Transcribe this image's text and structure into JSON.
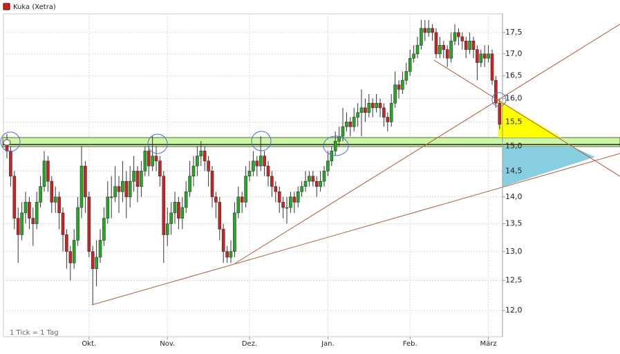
{
  "chart_data": {
    "type": "candlestick",
    "series_name": "Kuka (Xetra)",
    "annotation": "1 Tick = 1 Tag",
    "up_color": "#22aa22",
    "down_color": "#cc2222",
    "log_scale": true,
    "grid": true,
    "ylim": [
      11.58,
      17.95
    ],
    "yticks": [
      {
        "value": 12.0,
        "label": "12,0"
      },
      {
        "value": 12.5,
        "label": "12,5"
      },
      {
        "value": 13.0,
        "label": "13,0"
      },
      {
        "value": 13.5,
        "label": "13,5"
      },
      {
        "value": 14.0,
        "label": "14,0"
      },
      {
        "value": 14.5,
        "label": "14,5"
      },
      {
        "value": 15.0,
        "label": "15,0"
      },
      {
        "value": 15.5,
        "label": "15,5"
      },
      {
        "value": 16.0,
        "label": "16,0"
      },
      {
        "value": 16.5,
        "label": "16,5"
      },
      {
        "value": 17.0,
        "label": "17,0"
      },
      {
        "value": 17.5,
        "label": "17,5"
      }
    ],
    "xticks": [
      {
        "value": 22,
        "label": "Okt."
      },
      {
        "value": 43,
        "label": "Nov."
      },
      {
        "value": 65,
        "label": "Dez."
      },
      {
        "value": 86,
        "label": "Jan."
      },
      {
        "value": 108,
        "label": "Feb."
      },
      {
        "value": 129,
        "label": "März"
      }
    ],
    "ohlc": [
      [
        15.1,
        15.25,
        14.75,
        14.9
      ],
      [
        14.9,
        15.0,
        14.2,
        14.4
      ],
      [
        14.4,
        14.5,
        13.4,
        13.6
      ],
      [
        13.6,
        13.8,
        12.8,
        13.3
      ],
      [
        13.3,
        13.9,
        13.2,
        13.7
      ],
      [
        13.7,
        14.1,
        13.5,
        13.9
      ],
      [
        13.9,
        14.0,
        13.4,
        13.6
      ],
      [
        13.6,
        13.8,
        13.1,
        13.5
      ],
      [
        13.5,
        14.1,
        13.4,
        13.9
      ],
      [
        13.9,
        14.4,
        13.8,
        14.2
      ],
      [
        14.2,
        14.9,
        14.1,
        14.7
      ],
      [
        14.7,
        14.8,
        14.1,
        14.3
      ],
      [
        14.3,
        14.4,
        13.7,
        13.9
      ],
      [
        13.9,
        14.2,
        13.7,
        14.0
      ],
      [
        14.0,
        14.1,
        13.4,
        13.7
      ],
      [
        13.7,
        13.8,
        13.0,
        13.3
      ],
      [
        13.3,
        13.4,
        12.7,
        13.0
      ],
      [
        13.0,
        13.1,
        12.5,
        12.8
      ],
      [
        12.8,
        13.4,
        12.7,
        13.2
      ],
      [
        13.2,
        14.0,
        13.1,
        13.8
      ],
      [
        13.8,
        15.0,
        13.6,
        14.6
      ],
      [
        14.6,
        14.7,
        13.7,
        14.0
      ],
      [
        14.0,
        14.1,
        12.9,
        13.0
      ],
      [
        13.0,
        13.1,
        12.1,
        12.7
      ],
      [
        12.7,
        13.2,
        12.4,
        12.9
      ],
      [
        12.9,
        13.4,
        12.8,
        13.2
      ],
      [
        13.2,
        13.8,
        13.1,
        13.6
      ],
      [
        13.6,
        14.3,
        13.5,
        14.0
      ],
      [
        14.0,
        14.4,
        13.6,
        14.0
      ],
      [
        14.0,
        14.6,
        13.9,
        14.2
      ],
      [
        14.2,
        14.4,
        13.7,
        14.1
      ],
      [
        14.1,
        14.7,
        13.9,
        14.3
      ],
      [
        14.3,
        14.5,
        13.6,
        14.0
      ],
      [
        14.0,
        14.6,
        13.8,
        14.3
      ],
      [
        14.3,
        14.8,
        14.1,
        14.5
      ],
      [
        14.5,
        14.6,
        13.9,
        14.2
      ],
      [
        14.2,
        14.7,
        14.0,
        14.5
      ],
      [
        14.5,
        15.0,
        14.4,
        14.9
      ],
      [
        14.9,
        15.0,
        14.4,
        14.6
      ],
      [
        14.6,
        15.2,
        14.5,
        14.8
      ],
      [
        14.8,
        15.0,
        14.5,
        14.7
      ],
      [
        14.7,
        14.8,
        14.2,
        14.4
      ],
      [
        14.4,
        14.5,
        12.8,
        13.3
      ],
      [
        13.3,
        13.8,
        13.1,
        13.5
      ],
      [
        13.5,
        13.9,
        13.3,
        13.7
      ],
      [
        13.7,
        14.1,
        13.5,
        13.9
      ],
      [
        13.9,
        14.0,
        13.4,
        13.6
      ],
      [
        13.6,
        14.0,
        13.4,
        13.8
      ],
      [
        13.8,
        14.3,
        13.7,
        14.1
      ],
      [
        14.1,
        14.7,
        14.0,
        14.4
      ],
      [
        14.4,
        14.8,
        14.2,
        14.6
      ],
      [
        14.6,
        15.0,
        14.4,
        14.8
      ],
      [
        14.8,
        15.1,
        14.6,
        14.9
      ],
      [
        14.9,
        15.0,
        14.5,
        14.7
      ],
      [
        14.7,
        14.8,
        14.2,
        14.5
      ],
      [
        14.5,
        14.6,
        13.8,
        14.0
      ],
      [
        14.0,
        14.1,
        13.6,
        13.9
      ],
      [
        13.9,
        14.0,
        13.2,
        13.4
      ],
      [
        13.4,
        13.5,
        12.8,
        13.0
      ],
      [
        13.0,
        13.1,
        12.8,
        12.9
      ],
      [
        12.9,
        13.2,
        12.8,
        13.0
      ],
      [
        13.0,
        13.9,
        12.9,
        13.7
      ],
      [
        13.7,
        14.2,
        13.6,
        14.0
      ],
      [
        14.0,
        14.1,
        13.7,
        13.9
      ],
      [
        13.9,
        14.6,
        13.8,
        14.4
      ],
      [
        14.4,
        14.7,
        14.3,
        14.5
      ],
      [
        14.5,
        14.9,
        14.4,
        14.7
      ],
      [
        14.7,
        14.8,
        14.4,
        14.6
      ],
      [
        14.6,
        15.2,
        14.5,
        14.8
      ],
      [
        14.8,
        14.9,
        14.4,
        14.6
      ],
      [
        14.6,
        14.7,
        14.2,
        14.4
      ],
      [
        14.4,
        14.5,
        14.0,
        14.2
      ],
      [
        14.2,
        14.3,
        13.9,
        14.1
      ],
      [
        14.1,
        14.2,
        13.7,
        13.9
      ],
      [
        13.9,
        14.0,
        13.6,
        13.8
      ],
      [
        13.8,
        14.0,
        13.5,
        13.8
      ],
      [
        13.8,
        14.1,
        13.7,
        14.0
      ],
      [
        14.0,
        14.1,
        13.7,
        13.9
      ],
      [
        13.9,
        14.2,
        13.8,
        14.1
      ],
      [
        14.1,
        14.3,
        14.0,
        14.2
      ],
      [
        14.2,
        14.5,
        14.1,
        14.3
      ],
      [
        14.3,
        14.5,
        14.2,
        14.4
      ],
      [
        14.4,
        14.5,
        14.2,
        14.3
      ],
      [
        14.3,
        14.4,
        14.0,
        14.2
      ],
      [
        14.2,
        14.5,
        14.1,
        14.3
      ],
      [
        14.3,
        14.6,
        14.2,
        14.5
      ],
      [
        14.5,
        14.9,
        14.4,
        14.7
      ],
      [
        14.7,
        15.0,
        14.6,
        14.9
      ],
      [
        14.9,
        15.3,
        14.8,
        15.1
      ],
      [
        15.1,
        15.4,
        15.0,
        15.2
      ],
      [
        15.2,
        15.8,
        15.1,
        15.4
      ],
      [
        15.4,
        15.7,
        15.3,
        15.5
      ],
      [
        15.5,
        15.6,
        15.2,
        15.4
      ],
      [
        15.4,
        15.8,
        15.3,
        15.6
      ],
      [
        15.6,
        15.9,
        15.4,
        15.7
      ],
      [
        15.7,
        16.2,
        15.2,
        15.8
      ],
      [
        15.8,
        16.0,
        15.5,
        15.7
      ],
      [
        15.7,
        16.1,
        15.6,
        15.9
      ],
      [
        15.9,
        16.0,
        15.6,
        15.8
      ],
      [
        15.8,
        16.1,
        15.7,
        15.9
      ],
      [
        15.9,
        16.0,
        15.6,
        15.8
      ],
      [
        15.8,
        15.9,
        15.4,
        15.6
      ],
      [
        15.6,
        15.7,
        15.3,
        15.5
      ],
      [
        15.5,
        16.1,
        15.4,
        15.9
      ],
      [
        15.9,
        16.6,
        15.8,
        16.3
      ],
      [
        16.3,
        16.4,
        16.0,
        16.2
      ],
      [
        16.2,
        16.6,
        16.1,
        16.4
      ],
      [
        16.4,
        16.8,
        16.3,
        16.6
      ],
      [
        16.6,
        17.1,
        16.5,
        16.9
      ],
      [
        16.9,
        17.2,
        16.8,
        17.0
      ],
      [
        17.0,
        17.4,
        16.9,
        17.2
      ],
      [
        17.2,
        17.8,
        17.1,
        17.6
      ],
      [
        17.6,
        17.8,
        17.3,
        17.5
      ],
      [
        17.5,
        17.8,
        17.4,
        17.6
      ],
      [
        17.6,
        17.7,
        17.3,
        17.5
      ],
      [
        17.5,
        17.6,
        16.9,
        17.0
      ],
      [
        17.0,
        17.4,
        16.9,
        17.2
      ],
      [
        17.2,
        17.3,
        16.9,
        17.1
      ],
      [
        17.1,
        17.2,
        16.7,
        16.9
      ],
      [
        16.9,
        17.5,
        16.8,
        17.3
      ],
      [
        17.3,
        17.7,
        17.2,
        17.5
      ],
      [
        17.5,
        17.6,
        17.2,
        17.4
      ],
      [
        17.4,
        17.5,
        17.1,
        17.3
      ],
      [
        17.3,
        17.4,
        16.9,
        17.1
      ],
      [
        17.1,
        17.5,
        17.0,
        17.3
      ],
      [
        17.3,
        17.4,
        16.9,
        17.1
      ],
      [
        17.1,
        17.2,
        16.4,
        16.8
      ],
      [
        16.8,
        17.1,
        16.7,
        17.0
      ],
      [
        17.0,
        17.2,
        16.7,
        16.9
      ],
      [
        16.9,
        17.2,
        16.8,
        17.0
      ],
      [
        17.0,
        17.1,
        16.3,
        16.4
      ],
      [
        16.4,
        16.5,
        15.8,
        15.9
      ],
      [
        15.9,
        16.0,
        15.35,
        15.45
      ]
    ]
  }
}
